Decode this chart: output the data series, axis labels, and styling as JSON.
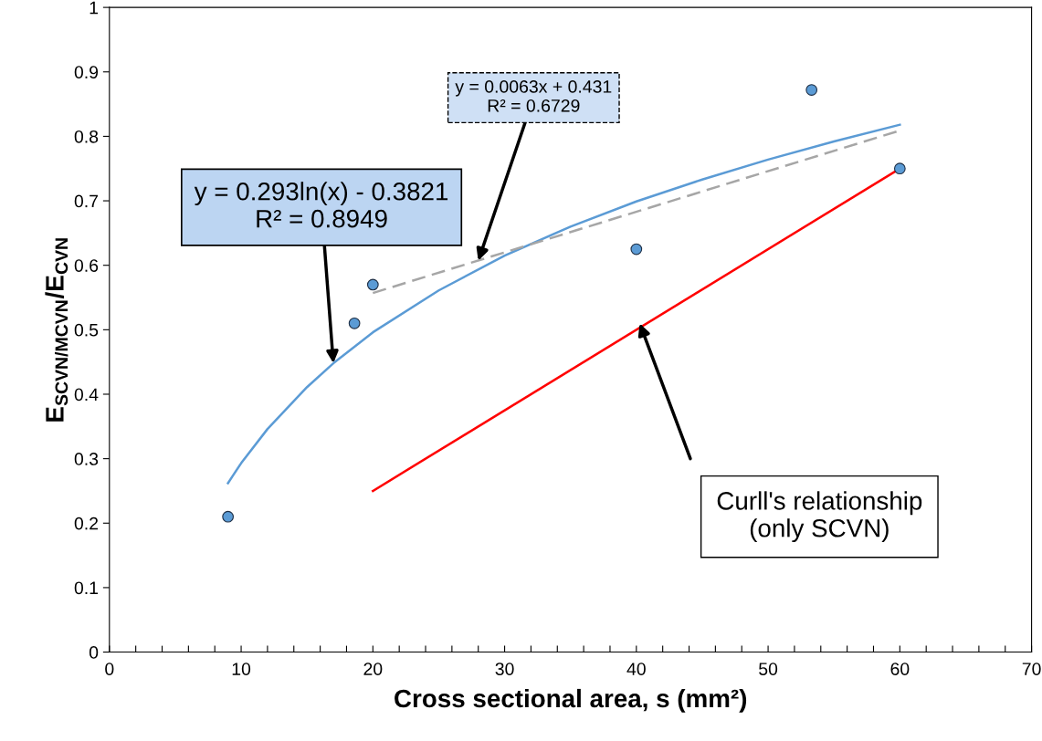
{
  "chart_data": {
    "type": "scatter",
    "xlabel": "Cross sectional area, s (mm²)",
    "ylabel": "E$_{SCVN/MCVN}$/E$_{CVN}$",
    "series": [
      {
        "type": "scatter",
        "color": "#5b9bd5",
        "x": [
          9,
          18.6,
          20,
          40,
          53.3,
          60
        ],
        "values": [
          0.21,
          0.51,
          0.57,
          0.625,
          0.872,
          0.75
        ]
      },
      {
        "type": "line",
        "color": "#5b9bd5",
        "line_style": "solid",
        "x": [
          9,
          10,
          12,
          15,
          17,
          20,
          25,
          30,
          35,
          40,
          45,
          50,
          55,
          60
        ],
        "values": [
          0.262,
          0.293,
          0.346,
          0.411,
          0.448,
          0.496,
          0.561,
          0.615,
          0.66,
          0.699,
          0.733,
          0.764,
          0.792,
          0.818
        ]
      },
      {
        "type": "line",
        "color": "#a6a6a6",
        "line_style": "dashed",
        "x": [
          20,
          60
        ],
        "values": [
          0.557,
          0.809
        ]
      },
      {
        "type": "line",
        "color": "#ff0000",
        "line_style": "solid",
        "x": [
          20,
          60
        ],
        "values": [
          0.25,
          0.75
        ]
      }
    ],
    "annotations": [
      {
        "text": "y = 0.293ln(x) - 0.3821\nR² = 0.8949",
        "x": 17,
        "y": 0.448
      },
      {
        "text": "y = 0.0063x + 0.431\nR² = 0.6729",
        "x": 28,
        "y": 0.607
      },
      "Curll's relationship\n(only SCVN)"
    ],
    "xlim": [
      0,
      70
    ],
    "ylim": [
      0,
      1
    ],
    "xticks": [
      0,
      {
        "value": 2,
        "label": null
      },
      {
        "value": 4,
        "label": null
      },
      {
        "value": 6,
        "label": null
      },
      {
        "value": 8,
        "label": null
      },
      10,
      {
        "value": 12,
        "label": null
      },
      {
        "value": 14,
        "label": null
      },
      {
        "value": 16,
        "label": null
      },
      {
        "value": 18,
        "label": null
      },
      20,
      {
        "value": 22,
        "label": null
      },
      {
        "value": 24,
        "label": null
      },
      {
        "value": 26,
        "label": null
      },
      {
        "value": 28,
        "label": null
      },
      30,
      {
        "value": 32,
        "label": null
      },
      {
        "value": 34,
        "label": null
      },
      {
        "value": 36,
        "label": null
      },
      {
        "value": 38,
        "label": null
      },
      40,
      {
        "value": 42,
        "label": null
      },
      {
        "value": 44,
        "label": null
      },
      {
        "value": 46,
        "label": null
      },
      {
        "value": 48,
        "label": null
      },
      50,
      {
        "value": 52,
        "label": null
      },
      {
        "value": 54,
        "label": null
      },
      {
        "value": 56,
        "label": null
      },
      {
        "value": 58,
        "label": null
      },
      60,
      {
        "value": 62,
        "label": null
      },
      {
        "value": 64,
        "label": null
      },
      {
        "value": 66,
        "label": null
      },
      {
        "value": 68,
        "label": null
      },
      70
    ],
    "yticks": [
      0,
      0.1,
      0.2,
      0.3,
      0.4,
      0.5,
      0.6,
      0.7,
      0.8,
      0.9,
      1
    ],
    "grid": false,
    "legend": false
  }
}
